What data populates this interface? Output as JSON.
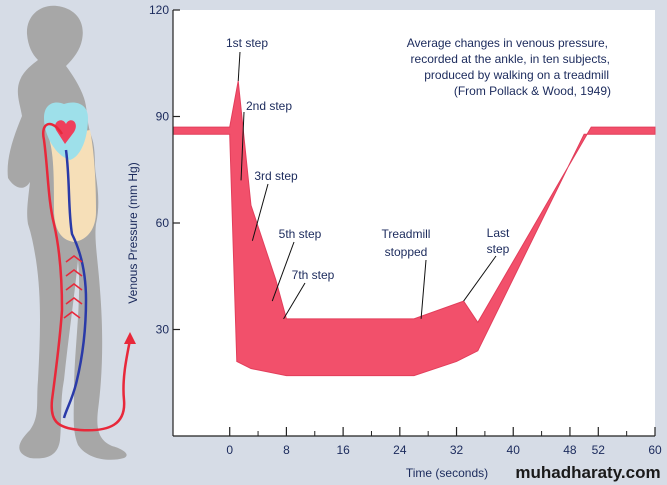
{
  "colors": {
    "background": "#d6dce6",
    "plot_background": "#ffffff",
    "band": "#f2506b",
    "band_edge": "#e23e5b",
    "text": "#1b2a5c",
    "silhouette": "#a7a7a7",
    "artery": "#e8283a",
    "vein": "#2a3aa8"
  },
  "chart_data": {
    "type": "area",
    "xlabel": "Time (seconds)",
    "ylabel": "Venous Pressure (mm Hg)",
    "xlim": [
      -8,
      60
    ],
    "ylim": [
      0,
      120
    ],
    "x_ticks": [
      0,
      8,
      16,
      24,
      32,
      40,
      48,
      52,
      60
    ],
    "x_tick_labels": [
      "0",
      "8",
      "16",
      "24",
      "32",
      "40",
      "48",
      "52",
      "60"
    ],
    "x_minor_ticks": [
      4,
      12,
      20,
      28,
      36,
      44,
      56
    ],
    "y_ticks": [
      30,
      60,
      90,
      120
    ],
    "y_tick_labels": [
      "30",
      "60",
      "90",
      "120"
    ],
    "grid": false,
    "series": [
      {
        "upper": {
          "x": [
            -8,
            0,
            1.2,
            3,
            6.5,
            8,
            26,
            33,
            35,
            51,
            60
          ],
          "y": [
            87,
            87,
            100,
            65,
            44,
            33,
            33,
            38,
            32,
            87,
            87
          ]
        },
        "lower": {
          "x": [
            -8,
            0,
            1,
            3,
            8,
            26,
            29,
            32,
            35,
            50,
            60
          ],
          "y": [
            85,
            85,
            21,
            19,
            17,
            17,
            19,
            21,
            24,
            85,
            85
          ]
        }
      }
    ],
    "annotations": [
      {
        "text": "1st step",
        "x": 1.2,
        "y": 100,
        "anchor": "top"
      },
      {
        "text": "2nd step",
        "x": 1.6,
        "y": 72,
        "anchor": "mid"
      },
      {
        "text": "3rd step",
        "x": 3.2,
        "y": 55,
        "anchor": "mid"
      },
      {
        "text": "5th step",
        "x": 6,
        "y": 38,
        "anchor": "mid"
      },
      {
        "text": "7th step",
        "x": 7.6,
        "y": 33,
        "anchor": "mid"
      },
      {
        "text": "Treadmill",
        "x": 27,
        "y": 33,
        "anchor": "mid"
      },
      {
        "text": "stopped",
        "x": 27,
        "y": 33,
        "anchor": "none"
      },
      {
        "text": "Last",
        "x": 33,
        "y": 38,
        "anchor": "mid"
      },
      {
        "text": "step",
        "x": 33,
        "y": 38,
        "anchor": "none"
      }
    ],
    "description": [
      "Average changes in venous pressure,",
      "recorded at the ankle, in ten subjects,",
      "produced by walking on a treadmill",
      "(From Pollack & Wood, 1949)"
    ]
  },
  "watermark": "muhadharaty.com"
}
